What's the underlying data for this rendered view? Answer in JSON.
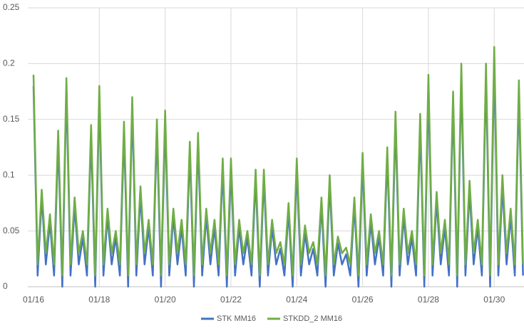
{
  "chart_data": {
    "type": "line",
    "categories": [
      "01/16",
      null,
      null,
      null,
      null,
      null,
      null,
      null,
      null,
      null,
      null,
      null,
      null,
      null,
      null,
      null,
      "01/18",
      null,
      null,
      null,
      null,
      null,
      null,
      null,
      null,
      null,
      null,
      null,
      null,
      null,
      null,
      null,
      "01/20",
      null,
      null,
      null,
      null,
      null,
      null,
      null,
      null,
      null,
      null,
      null,
      null,
      null,
      null,
      null,
      "01/22",
      null,
      null,
      null,
      null,
      null,
      null,
      null,
      null,
      null,
      null,
      null,
      null,
      null,
      null,
      null,
      "01/24",
      null,
      null,
      null,
      null,
      null,
      null,
      null,
      null,
      null,
      null,
      null,
      null,
      null,
      null,
      null,
      "01/26",
      null,
      null,
      null,
      null,
      null,
      null,
      null,
      null,
      null,
      null,
      null,
      null,
      null,
      null,
      null,
      "01/28",
      null,
      null,
      null,
      null,
      null,
      null,
      null,
      null,
      null,
      null,
      null,
      null,
      null,
      null,
      null,
      "01/30",
      null,
      null,
      null,
      null,
      null,
      null,
      null
    ],
    "series": [
      {
        "name": "STK MM16",
        "color": "#4472c4",
        "values": [
          0.18,
          0.01,
          0.08,
          0.02,
          0.058,
          0.01,
          0.13,
          0.0,
          0.177,
          0.01,
          0.072,
          0.02,
          0.044,
          0.01,
          0.135,
          0.0,
          0.17,
          0.01,
          0.063,
          0.02,
          0.044,
          0.01,
          0.138,
          0.0,
          0.16,
          0.01,
          0.082,
          0.02,
          0.053,
          0.01,
          0.14,
          0.0,
          0.148,
          0.01,
          0.063,
          0.02,
          0.053,
          0.01,
          0.121,
          0.0,
          0.129,
          0.01,
          0.063,
          0.02,
          0.053,
          0.01,
          0.106,
          0.0,
          0.106,
          0.01,
          0.053,
          0.02,
          0.044,
          0.01,
          0.097,
          0.0,
          0.097,
          0.01,
          0.053,
          0.02,
          0.034,
          0.01,
          0.068,
          0.0,
          0.106,
          0.01,
          0.048,
          0.02,
          0.034,
          0.01,
          0.073,
          0.0,
          0.092,
          0.01,
          0.039,
          0.02,
          0.029,
          0.01,
          0.073,
          0.0,
          0.111,
          0.01,
          0.058,
          0.02,
          0.044,
          0.01,
          0.116,
          0.0,
          0.146,
          0.01,
          0.063,
          0.02,
          0.044,
          0.01,
          0.144,
          0.0,
          0.178,
          0.01,
          0.077,
          0.02,
          0.053,
          0.01,
          0.164,
          0.0,
          0.188,
          0.01,
          0.086,
          0.02,
          0.053,
          0.01,
          0.188,
          0.0,
          0.2,
          0.01,
          0.09,
          0.02,
          0.063,
          0.01,
          0.173,
          0.01
        ]
      },
      {
        "name": "STKDD_2 MM16",
        "color": "#70ad47",
        "values": [
          0.19,
          0.02,
          0.087,
          0.03,
          0.065,
          0.02,
          0.14,
          0.01,
          0.187,
          0.02,
          0.08,
          0.03,
          0.05,
          0.02,
          0.145,
          0.01,
          0.18,
          0.02,
          0.07,
          0.03,
          0.05,
          0.02,
          0.148,
          0.01,
          0.17,
          0.02,
          0.09,
          0.03,
          0.06,
          0.02,
          0.15,
          0.01,
          0.158,
          0.02,
          0.07,
          0.03,
          0.06,
          0.02,
          0.13,
          0.01,
          0.138,
          0.02,
          0.07,
          0.03,
          0.06,
          0.02,
          0.115,
          0.01,
          0.115,
          0.02,
          0.06,
          0.03,
          0.05,
          0.02,
          0.105,
          0.01,
          0.105,
          0.02,
          0.06,
          0.03,
          0.04,
          0.02,
          0.075,
          0.01,
          0.115,
          0.02,
          0.055,
          0.03,
          0.04,
          0.02,
          0.08,
          0.01,
          0.1,
          0.02,
          0.045,
          0.03,
          0.035,
          0.02,
          0.08,
          0.01,
          0.12,
          0.02,
          0.065,
          0.03,
          0.05,
          0.02,
          0.125,
          0.01,
          0.157,
          0.02,
          0.07,
          0.03,
          0.05,
          0.02,
          0.155,
          0.01,
          0.19,
          0.02,
          0.085,
          0.03,
          0.06,
          0.02,
          0.175,
          0.01,
          0.2,
          0.02,
          0.095,
          0.03,
          0.06,
          0.02,
          0.2,
          0.01,
          0.215,
          0.02,
          0.1,
          0.03,
          0.07,
          0.02,
          0.185,
          0.02
        ]
      }
    ],
    "ylim": [
      0,
      0.25
    ],
    "yticks": [
      0,
      0.05,
      0.1,
      0.15,
      0.2,
      0.25
    ],
    "grid": true,
    "legend": "bottom"
  }
}
